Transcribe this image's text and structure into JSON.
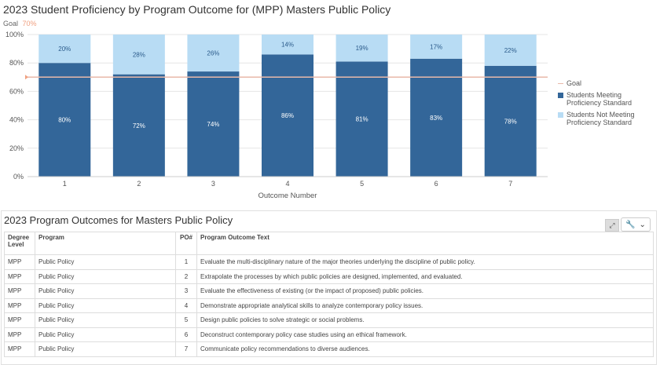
{
  "chart_title": "2023 Student Proficiency by Program Outcome for (MPP) Masters Public Policy",
  "goal": {
    "label": "Goal",
    "value_text": "70%",
    "value": 70
  },
  "chart_data": {
    "type": "bar",
    "stacked": true,
    "title": "2023 Student Proficiency by Program Outcome for (MPP) Masters Public Policy",
    "xlabel": "Outcome Number",
    "ylabel": "",
    "categories": [
      "1",
      "2",
      "3",
      "4",
      "5",
      "6",
      "7"
    ],
    "series": [
      {
        "name": "Students Meeting Proficiency Standard",
        "values": [
          80,
          72,
          74,
          86,
          81,
          83,
          78
        ],
        "color": "#336699"
      },
      {
        "name": "Students Not Meeting Proficiency Standard",
        "values": [
          20,
          28,
          26,
          14,
          19,
          17,
          22
        ],
        "color": "#b8dcf4"
      }
    ],
    "goal_line": {
      "name": "Goal",
      "value": 70,
      "color": "#e8b9aa"
    },
    "ylim": [
      0,
      100
    ],
    "yticks": [
      "0%",
      "20%",
      "40%",
      "60%",
      "80%",
      "100%"
    ],
    "legend": "right",
    "grid": true
  },
  "legend": [
    {
      "label": "Goal",
      "kind": "line",
      "color": "#e8b9aa"
    },
    {
      "label": "Students Meeting Proficiency Standard",
      "kind": "box",
      "color": "#336699"
    },
    {
      "label": "Students Not Meeting Proficiency Standard",
      "kind": "box",
      "color": "#b8dcf4"
    }
  ],
  "table": {
    "title": "2023 Program Outcomes for Masters Public Policy",
    "headers": {
      "level": "Degree Level",
      "program": "Program",
      "po": "PO#",
      "text": "Program Outcome Text"
    },
    "rows": [
      {
        "level": "MPP",
        "program": "Public Policy",
        "po": "1",
        "text": "Evaluate the multi-disciplinary nature of the major theories underlying the discipline of public policy."
      },
      {
        "level": "MPP",
        "program": "Public Policy",
        "po": "2",
        "text": "Extrapolate the processes by which public policies are designed, implemented, and evaluated."
      },
      {
        "level": "MPP",
        "program": "Public Policy",
        "po": "3",
        "text": "Evaluate the effectiveness of existing (or the impact of proposed) public policies."
      },
      {
        "level": "MPP",
        "program": "Public Policy",
        "po": "4",
        "text": "Demonstrate appropriate analytical skills to analyze contemporary policy issues."
      },
      {
        "level": "MPP",
        "program": "Public Policy",
        "po": "5",
        "text": "Design public policies to solve strategic or social problems."
      },
      {
        "level": "MPP",
        "program": "Public Policy",
        "po": "6",
        "text": "Deconstruct contemporary policy case studies using an ethical framework."
      },
      {
        "level": "MPP",
        "program": "Public Policy",
        "po": "7",
        "text": "Communicate policy recommendations to diverse audiences."
      }
    ]
  },
  "tools": {
    "expand_icon": "expand-icon",
    "wrench_icon": "wrench-icon",
    "caret_icon": "chevron-down-icon"
  }
}
